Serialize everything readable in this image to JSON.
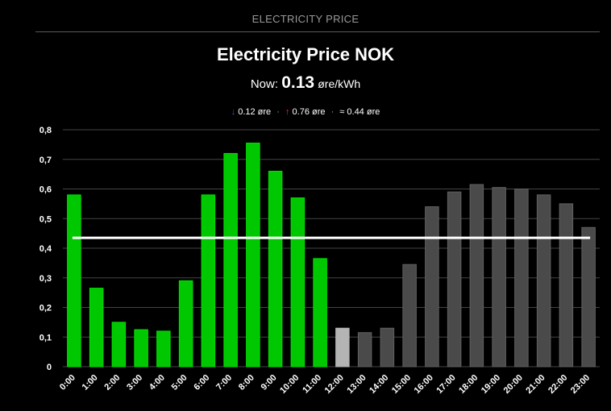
{
  "header": {
    "card_title": "ELECTRICITY PRICE"
  },
  "main": {
    "title": "Electricity Price NOK",
    "now_label": "Now:",
    "now_value": "0.13",
    "now_unit": "øre/kWh",
    "min_text": "0.12 øre",
    "max_text": "0.76 øre",
    "avg_text": "≈ 0.44 øre",
    "min_icon": "arrow-down-icon",
    "max_icon": "arrow-up-icon"
  },
  "chart_data": {
    "type": "bar",
    "title": "",
    "xlabel": "",
    "ylabel": "",
    "ylim": [
      0,
      0.8
    ],
    "yticks": [
      {
        "value": 0,
        "label": "0"
      },
      {
        "value": 0.1,
        "label": "0,1"
      },
      {
        "value": 0.2,
        "label": "0,2"
      },
      {
        "value": 0.3,
        "label": "0,3"
      },
      {
        "value": 0.4,
        "label": "0,4"
      },
      {
        "value": 0.5,
        "label": "0,5"
      },
      {
        "value": 0.6,
        "label": "0,6"
      },
      {
        "value": 0.7,
        "label": "0,7"
      },
      {
        "value": 0.8,
        "label": "0,8"
      }
    ],
    "categories": [
      "0:00",
      "1:00",
      "2:00",
      "3:00",
      "4:00",
      "5:00",
      "6:00",
      "7:00",
      "8:00",
      "9:00",
      "10:00",
      "11:00",
      "12:00",
      "13:00",
      "14:00",
      "15:00",
      "16:00",
      "17:00",
      "18:00",
      "19:00",
      "20:00",
      "21:00",
      "22:00",
      "23:00"
    ],
    "values": [
      0.58,
      0.265,
      0.15,
      0.125,
      0.12,
      0.29,
      0.58,
      0.72,
      0.755,
      0.66,
      0.57,
      0.365,
      0.13,
      0.115,
      0.13,
      0.345,
      0.54,
      0.59,
      0.615,
      0.605,
      0.6,
      0.58,
      0.55,
      0.47
    ],
    "bar_states": [
      "past",
      "past",
      "past",
      "past",
      "past",
      "past",
      "past",
      "past",
      "past",
      "past",
      "past",
      "past",
      "current",
      "future",
      "future",
      "future",
      "future",
      "future",
      "future",
      "future",
      "future",
      "future",
      "future",
      "future"
    ],
    "average": 0.435,
    "grid": true,
    "legend": "none",
    "colors": {
      "past": "#00c800",
      "past_border": "#00e000",
      "current": "#b4b4b4",
      "future": "#4a4a4a",
      "future_border": "#606060",
      "average_line": "#ffffff",
      "grid": "#444444"
    }
  }
}
